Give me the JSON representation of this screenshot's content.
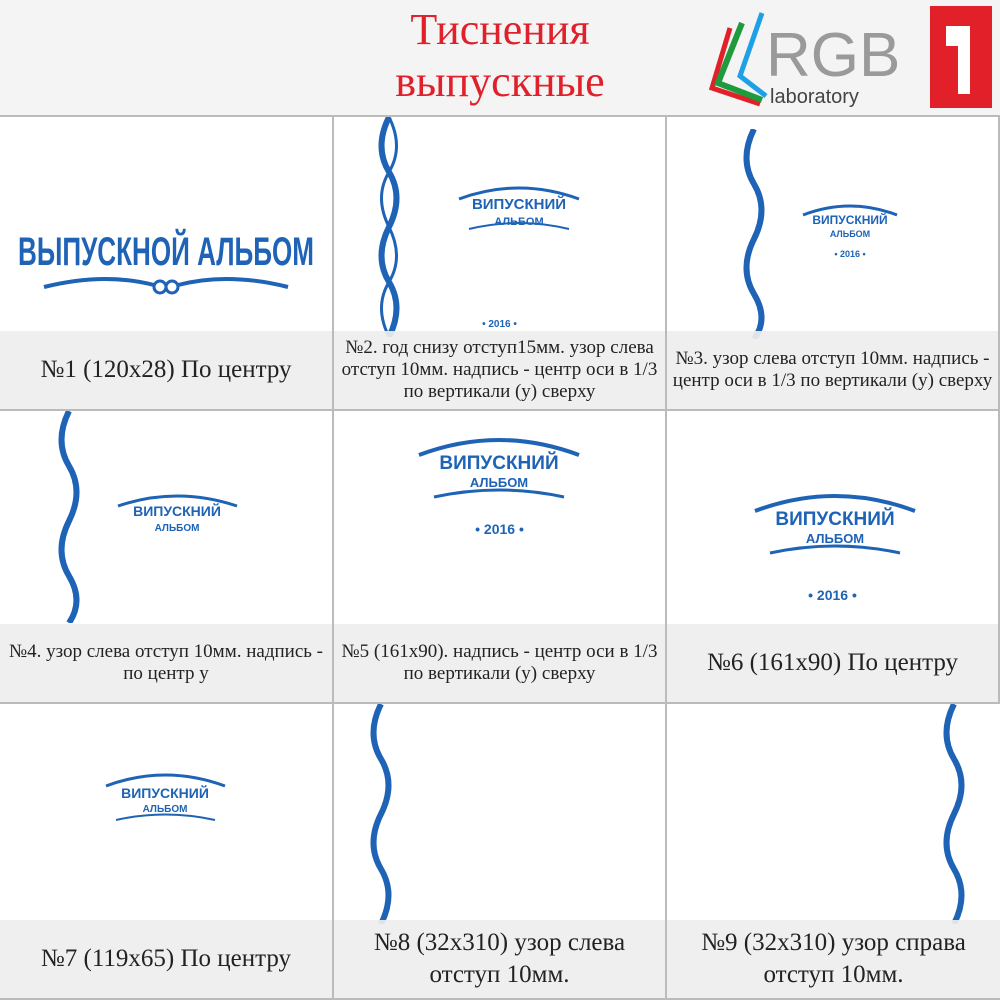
{
  "header": {
    "title_line1": "Тиснения",
    "title_line2": "выпускные",
    "logo_text": "RGB",
    "logo_sub": "laboratory",
    "badge": "1"
  },
  "colors": {
    "accent": "#e0202a",
    "emboss": "#1e63b5",
    "logo_gray": "#9a9a9a"
  },
  "emblems": {
    "album_title": "ВЫПУСКНОЙ АЛЬБОМ",
    "word1": "ВИПУСКНИЙ",
    "word2": "АЛЬБОМ",
    "year": "• 2016 •"
  },
  "cells": [
    {
      "caption": "№1 (120x28) По центру"
    },
    {
      "caption": "№2. год снизу отступ15мм.  узор слева отступ 10мм.  надпись - центр оси в 1/3 по вертикали (у) сверху"
    },
    {
      "caption": "№3. узор слева отступ 10мм. надпись - центр оси в 1/3 по вертикали (у) сверху"
    },
    {
      "caption": "№4. узор слева отступ 10мм. надпись - по центр у"
    },
    {
      "caption": "№5 (161x90). надпись - центр оси в 1/3 по вертикали (у) сверху"
    },
    {
      "caption": "№6 (161x90) По центру"
    },
    {
      "caption": "№7 (119x65) По центру"
    },
    {
      "caption": "№8 (32x310) узор слева отступ 10мм."
    },
    {
      "caption": "№9 (32x310) узор справа отступ 10мм."
    }
  ]
}
